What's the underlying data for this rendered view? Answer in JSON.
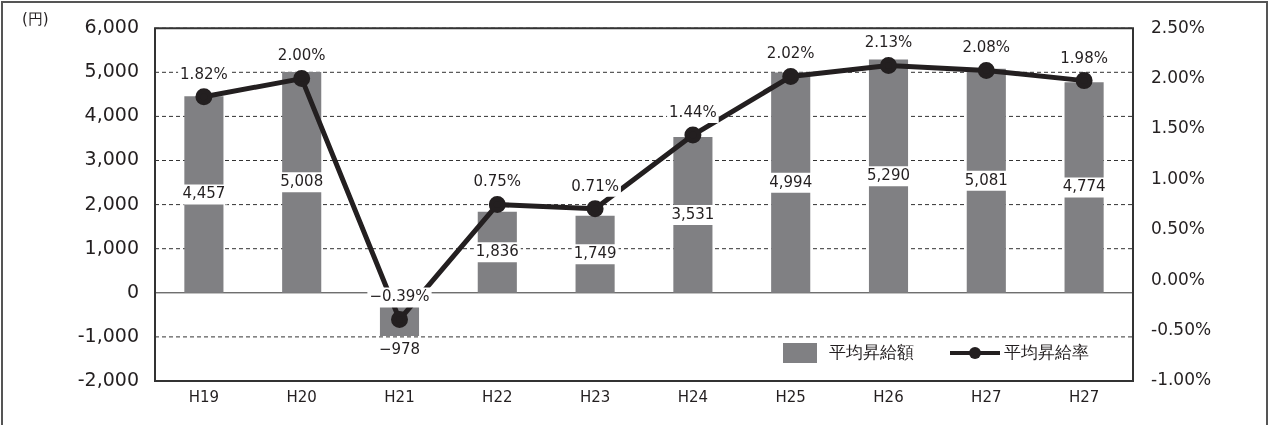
{
  "chart_data": {
    "type": "bar",
    "ylabel": "(円)",
    "categories": [
      "H19",
      "H20",
      "H21",
      "H22",
      "H23",
      "H24",
      "H25",
      "H26",
      "H27",
      "H27"
    ],
    "series": [
      {
        "name": "平均昇給額",
        "color": "#808083",
        "values": [
          4457,
          5008,
          -978,
          1836,
          1749,
          3531,
          4994,
          5290,
          5081,
          4774
        ],
        "value_labels": [
          "4,457",
          "5,008",
          "−978",
          "1,836",
          "1,749",
          "3,531",
          "4,994",
          "5,290",
          "5,081",
          "4,774"
        ]
      },
      {
        "name": "平均昇給率",
        "type": "line",
        "axis": "y2",
        "color": "#231f20",
        "values": [
          1.82,
          2.0,
          -0.39,
          0.75,
          0.71,
          1.44,
          2.02,
          2.13,
          2.08,
          1.98
        ],
        "value_labels": [
          "1.82%",
          "2.00%",
          "−0.39%",
          "0.75%",
          "0.71%",
          "1.44%",
          "2.02%",
          "2.13%",
          "2.08%",
          "1.98%"
        ]
      }
    ],
    "ylim": [
      -2000,
      6000
    ],
    "yticks": [
      {
        "value": -2000,
        "label": "-2,000"
      },
      {
        "value": -1000,
        "label": "-1,000"
      },
      0,
      {
        "value": 1000,
        "label": "1,000"
      },
      {
        "value": 2000,
        "label": "2,000"
      },
      {
        "value": 3000,
        "label": "3,000"
      },
      {
        "value": 4000,
        "label": "4,000"
      },
      {
        "value": 5000,
        "label": "5,000"
      },
      {
        "value": 6000,
        "label": "6,000"
      }
    ],
    "y2lim": [
      -1,
      2.5
    ],
    "y2ticks": [
      {
        "value": -1,
        "label": "-1.00%"
      },
      {
        "value": -0.5,
        "label": "-0.50%"
      },
      {
        "value": 0,
        "label": "0.00%"
      },
      {
        "value": 0.5,
        "label": "0.50%"
      },
      {
        "value": 1,
        "label": "1.00%"
      },
      {
        "value": 1.5,
        "label": "1.50%"
      },
      {
        "value": 2,
        "label": "2.00%"
      },
      {
        "value": 2.5,
        "label": "2.50%"
      }
    ],
    "grid": "y",
    "legend": "bottom right",
    "marker": "circle",
    "line_style": "solid"
  }
}
